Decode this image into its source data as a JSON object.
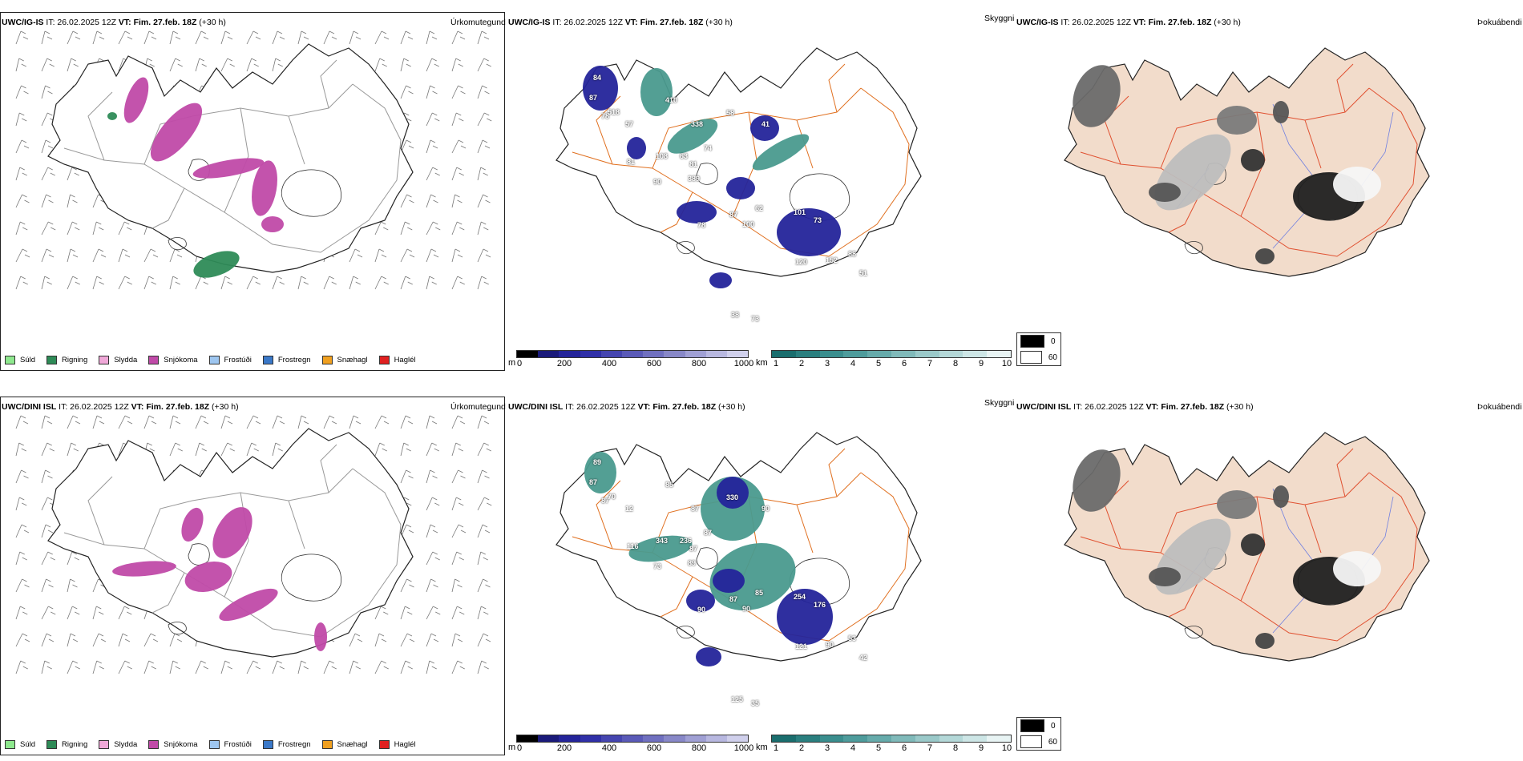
{
  "header_parts": {
    "it": "IT: 26.02.2025 12Z",
    "vt_label": "VT:",
    "vt": "Fim. 27.feb. 18Z",
    "offset": "(+30 h)"
  },
  "rows": [
    {
      "model": "UWC/IG-IS",
      "precip_title": "Úrkomutegund",
      "vis_title": "Skyggni",
      "fog_title": "Þokuábendi"
    },
    {
      "model": "UWC/DINI ISL",
      "precip_title": "Úrkomutegund",
      "vis_title": "Skyggni",
      "fog_title": "Þokuábendi"
    }
  ],
  "precip_legend": [
    {
      "label": "Súld",
      "color": "#8ee88e"
    },
    {
      "label": "Rigning",
      "color": "#2e8b57"
    },
    {
      "label": "Slydda",
      "color": "#f0a8d8"
    },
    {
      "label": "Snjókoma",
      "color": "#c04aa8"
    },
    {
      "label": "Frostúði",
      "color": "#9ec6f0"
    },
    {
      "label": "Frostregn",
      "color": "#3a78c8"
    },
    {
      "label": "Snæhagl",
      "color": "#f0a020"
    },
    {
      "label": "Haglél",
      "color": "#e02020"
    }
  ],
  "cloud_base_bar": {
    "unit": "m",
    "ticks": [
      "0",
      "200",
      "400",
      "600",
      "800",
      "1000"
    ],
    "colors": [
      "#000000",
      "#1a1a7a",
      "#24249a",
      "#3030a8",
      "#4545b0",
      "#5a5ab8",
      "#7070c0",
      "#8888c8",
      "#a0a0d4",
      "#b8b8e0",
      "#d0d0ec"
    ]
  },
  "visibility_bar": {
    "unit": "km",
    "ticks": [
      "1",
      "2",
      "3",
      "4",
      "5",
      "6",
      "7",
      "8",
      "9",
      "10"
    ],
    "colors": [
      "#1a6e6e",
      "#2a7f7f",
      "#3a8e8e",
      "#4e9c9c",
      "#66abab",
      "#80baba",
      "#9ac9c9",
      "#b4d8d8",
      "#cde6e6",
      "#e8f4f4"
    ]
  },
  "fog_legend": [
    {
      "label": "0",
      "color": "#000000"
    },
    {
      "label": "60",
      "color": "#ffffff"
    }
  ],
  "map_labels_top": [
    "84",
    "87",
    "78",
    "57",
    "518",
    "410",
    "338",
    "58",
    "81",
    "108",
    "63",
    "74",
    "90",
    "389",
    "41",
    "81",
    "78",
    "87",
    "62",
    "100",
    "101",
    "73",
    "120",
    "152",
    "88",
    "51",
    "73",
    "38"
  ],
  "map_labels_bottom": [
    "89",
    "87",
    "87",
    "12",
    "70",
    "85",
    "87",
    "330",
    "116",
    "343",
    "236",
    "87",
    "73",
    "89",
    "90",
    "87",
    "90",
    "87",
    "85",
    "90",
    "254",
    "176",
    "121",
    "90",
    "53",
    "42",
    "35",
    "125"
  ],
  "colors": {
    "coast": "#222222",
    "roads": "#e07020",
    "rivers": "#7080e0",
    "land_fog": "#f2dccb",
    "snow": "#c04aa8",
    "rain": "#2e8b57",
    "cloud": "#24249a",
    "vis": "#4a9a8e"
  }
}
